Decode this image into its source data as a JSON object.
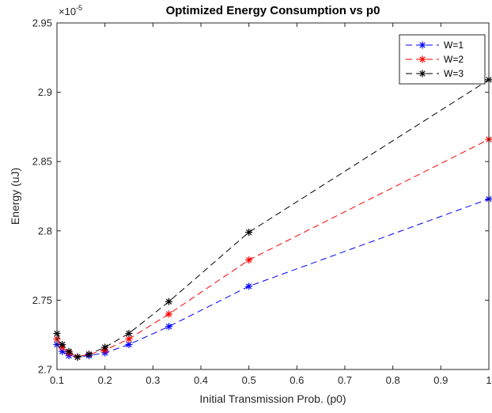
{
  "chart_data": {
    "type": "line",
    "title": "Optimized Energy Consumption vs p0",
    "xlabel": "Initial Transmission Prob. (p0)",
    "ylabel": "Energy (uJ)",
    "y_exponent_label": "×10",
    "y_exponent_power": "-5",
    "xlim": [
      0.1,
      1.0
    ],
    "ylim": [
      2.7,
      2.95
    ],
    "xticks": [
      0.1,
      0.2,
      0.3,
      0.4,
      0.5,
      0.6,
      0.7,
      0.8,
      0.9,
      1.0
    ],
    "xtick_labels": [
      "0.1",
      "0.2",
      "0.3",
      "0.4",
      "0.5",
      "0.6",
      "0.7",
      "0.8",
      "0.9",
      "1"
    ],
    "yticks": [
      2.7,
      2.75,
      2.8,
      2.85,
      2.9,
      2.95
    ],
    "ytick_labels": [
      "2.7",
      "2.75",
      "2.8",
      "2.85",
      "2.9",
      "2.95"
    ],
    "x": [
      0.1,
      0.1111,
      0.125,
      0.1429,
      0.1667,
      0.2,
      0.25,
      0.3333,
      0.5,
      1.0
    ],
    "series": [
      {
        "name": "W=1",
        "color": "#0000ff",
        "values": [
          2.718,
          2.713,
          2.71,
          2.709,
          2.71,
          2.712,
          2.718,
          2.731,
          2.76,
          2.823
        ]
      },
      {
        "name": "W=2",
        "color": "#ff0000",
        "values": [
          2.722,
          2.716,
          2.712,
          2.709,
          2.711,
          2.714,
          2.722,
          2.74,
          2.779,
          2.866
        ]
      },
      {
        "name": "W=3",
        "color": "#000000",
        "values": [
          2.726,
          2.718,
          2.713,
          2.709,
          2.711,
          2.716,
          2.726,
          2.749,
          2.799,
          2.909
        ]
      }
    ],
    "line_style": "dashed",
    "marker": "*",
    "grid": false,
    "legend_position": "top-right"
  }
}
